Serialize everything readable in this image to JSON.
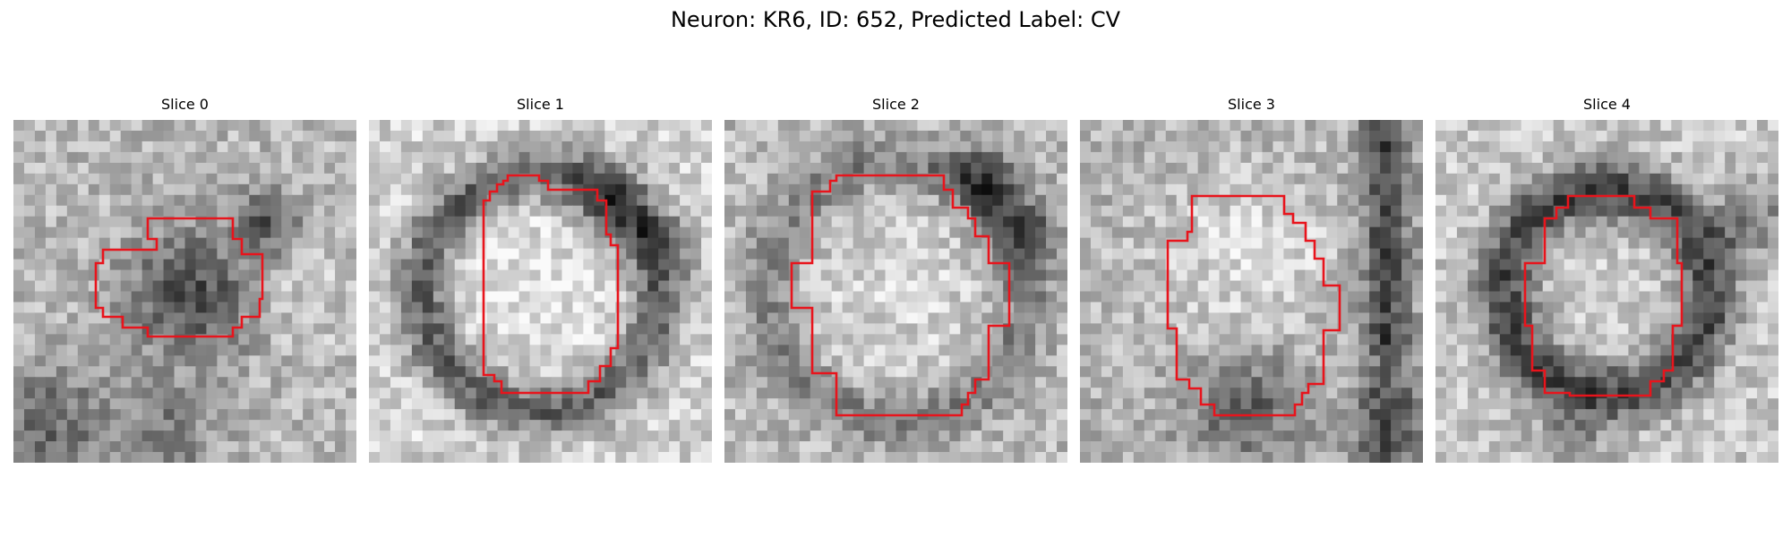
{
  "figure": {
    "title": "Neuron: KR6, ID: 652, Predicted Label: CV"
  },
  "slices": [
    {
      "label": "Slice 0",
      "pattern": "dark-blob"
    },
    {
      "label": "Slice 1",
      "pattern": "bright-ring"
    },
    {
      "label": "Slice 2",
      "pattern": "bright-center"
    },
    {
      "label": "Slice 3",
      "pattern": "bright-lower-dark"
    },
    {
      "label": "Slice 4",
      "pattern": "dark-ring"
    }
  ],
  "colors": {
    "contour": "#e8141c",
    "background": "#ffffff"
  }
}
